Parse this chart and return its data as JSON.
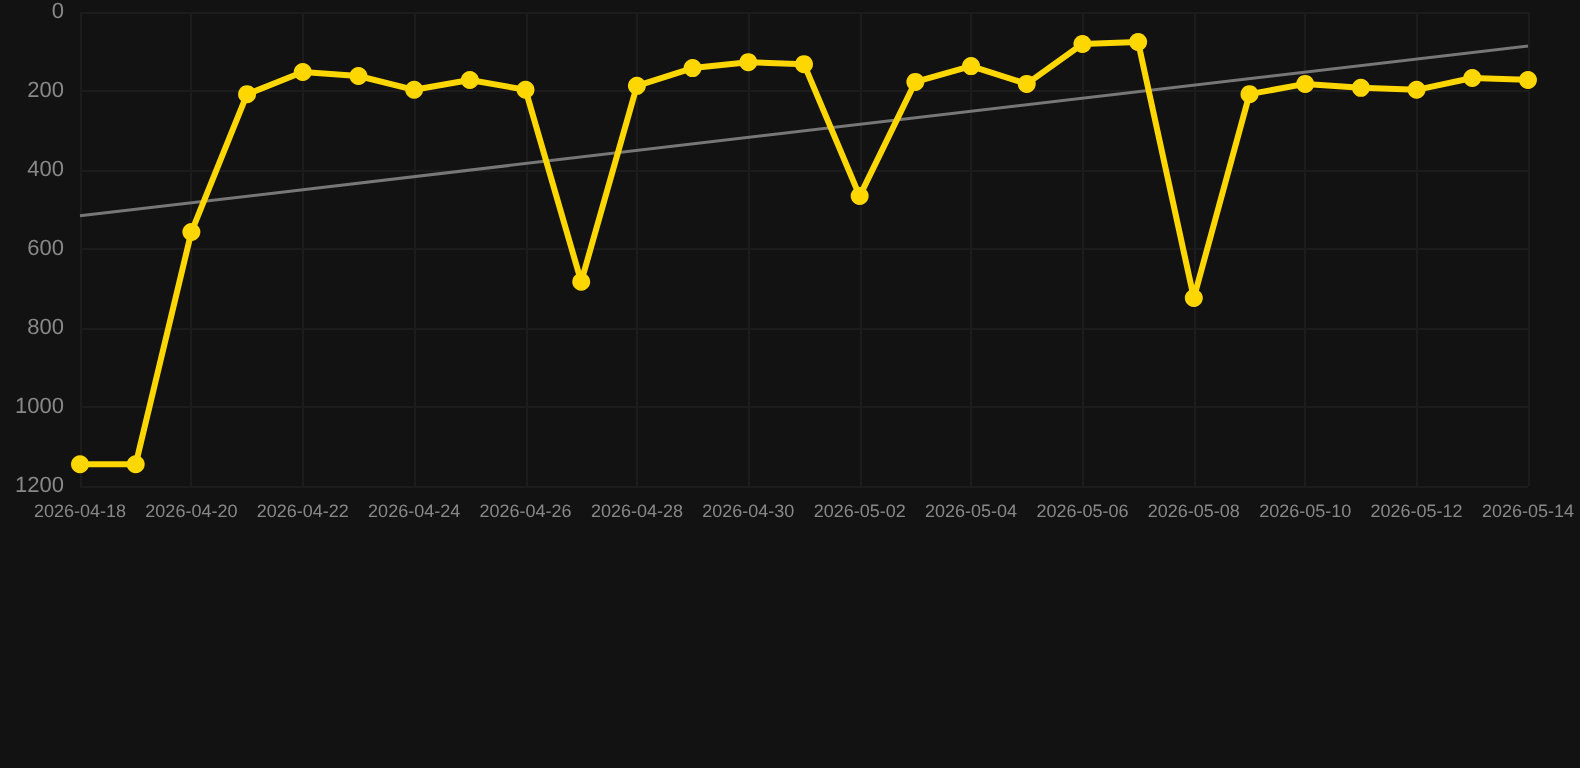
{
  "chart_data": {
    "type": "line",
    "x": [
      "2026-04-18",
      "2026-04-19",
      "2026-04-20",
      "2026-04-21",
      "2026-04-22",
      "2026-04-23",
      "2026-04-24",
      "2026-04-25",
      "2026-04-26",
      "2026-04-27",
      "2026-04-28",
      "2026-04-29",
      "2026-04-30",
      "2026-05-01",
      "2026-05-02",
      "2026-05-03",
      "2026-05-04",
      "2026-05-05",
      "2026-05-06",
      "2026-05-07",
      "2026-05-08",
      "2026-05-09",
      "2026-05-10",
      "2026-05-11",
      "2026-05-12",
      "2026-05-13",
      "2026-05-14"
    ],
    "series": [
      {
        "color": "#ffd700",
        "marker": "circle",
        "values": [
          1145,
          1145,
          557,
          208,
          152,
          162,
          197,
          172,
          197,
          683,
          187,
          142,
          127,
          132,
          466,
          177,
          137,
          182,
          81,
          76,
          724,
          208,
          182,
          192,
          197,
          167,
          172
        ]
      },
      {
        "type": "line",
        "color": "#777777",
        "marker": "none",
        "x": [
          "2026-04-18",
          "2026-05-14"
        ],
        "values": [
          516,
          86
        ]
      }
    ],
    "xlim": [
      "2026-04-18",
      "2026-05-14"
    ],
    "xticks": [
      "2026-04-18",
      "2026-04-20",
      "2026-04-22",
      "2026-04-24",
      "2026-04-26",
      "2026-04-28",
      "2026-04-30",
      "2026-05-02",
      "2026-05-04",
      "2026-05-06",
      "2026-05-08",
      "2026-05-10",
      "2026-05-12",
      "2026-05-14"
    ],
    "ylim": [
      1200,
      0
    ],
    "yticks": [
      0,
      200,
      400,
      600,
      800,
      1000,
      1200
    ],
    "grid": true
  }
}
